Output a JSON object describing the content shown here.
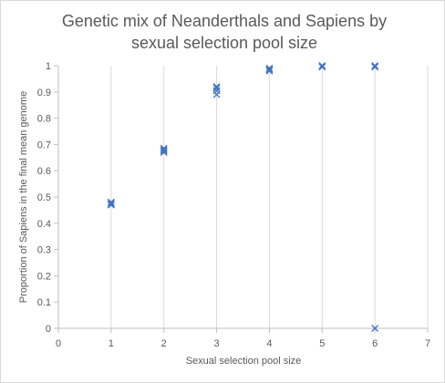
{
  "chart_data": {
    "type": "scatter",
    "title_lines": [
      "Genetic mix of Neanderthals and Sapiens by",
      "sexual selection pool size"
    ],
    "xlabel": "Sexual selection pool size",
    "ylabel": "Proportion of Sapiens in the final mean genome",
    "xlim": [
      0,
      7
    ],
    "ylim": [
      0,
      1
    ],
    "x_ticks": [
      "0",
      "1",
      "2",
      "3",
      "4",
      "5",
      "6",
      "7"
    ],
    "y_ticks": [
      "0",
      "0.1",
      "0.2",
      "0.3",
      "0.4",
      "0.5",
      "0.6",
      "0.7",
      "0.8",
      "0.9",
      "1"
    ],
    "grid": "vertical",
    "marker": "x",
    "marker_color": "#4472c4",
    "points": [
      {
        "x": 1,
        "y": 0.47
      },
      {
        "x": 1,
        "y": 0.475
      },
      {
        "x": 1,
        "y": 0.48
      },
      {
        "x": 1,
        "y": 0.47
      },
      {
        "x": 2,
        "y": 0.67
      },
      {
        "x": 2,
        "y": 0.675
      },
      {
        "x": 2,
        "y": 0.68
      },
      {
        "x": 2,
        "y": 0.685
      },
      {
        "x": 3,
        "y": 0.89
      },
      {
        "x": 3,
        "y": 0.905
      },
      {
        "x": 3,
        "y": 0.915
      },
      {
        "x": 3,
        "y": 0.92
      },
      {
        "x": 4,
        "y": 0.98
      },
      {
        "x": 4,
        "y": 0.985
      },
      {
        "x": 4,
        "y": 0.99
      },
      {
        "x": 5,
        "y": 0.995
      },
      {
        "x": 5,
        "y": 1.0
      },
      {
        "x": 6,
        "y": 0.995
      },
      {
        "x": 6,
        "y": 1.0
      },
      {
        "x": 6,
        "y": 0.0
      }
    ]
  }
}
